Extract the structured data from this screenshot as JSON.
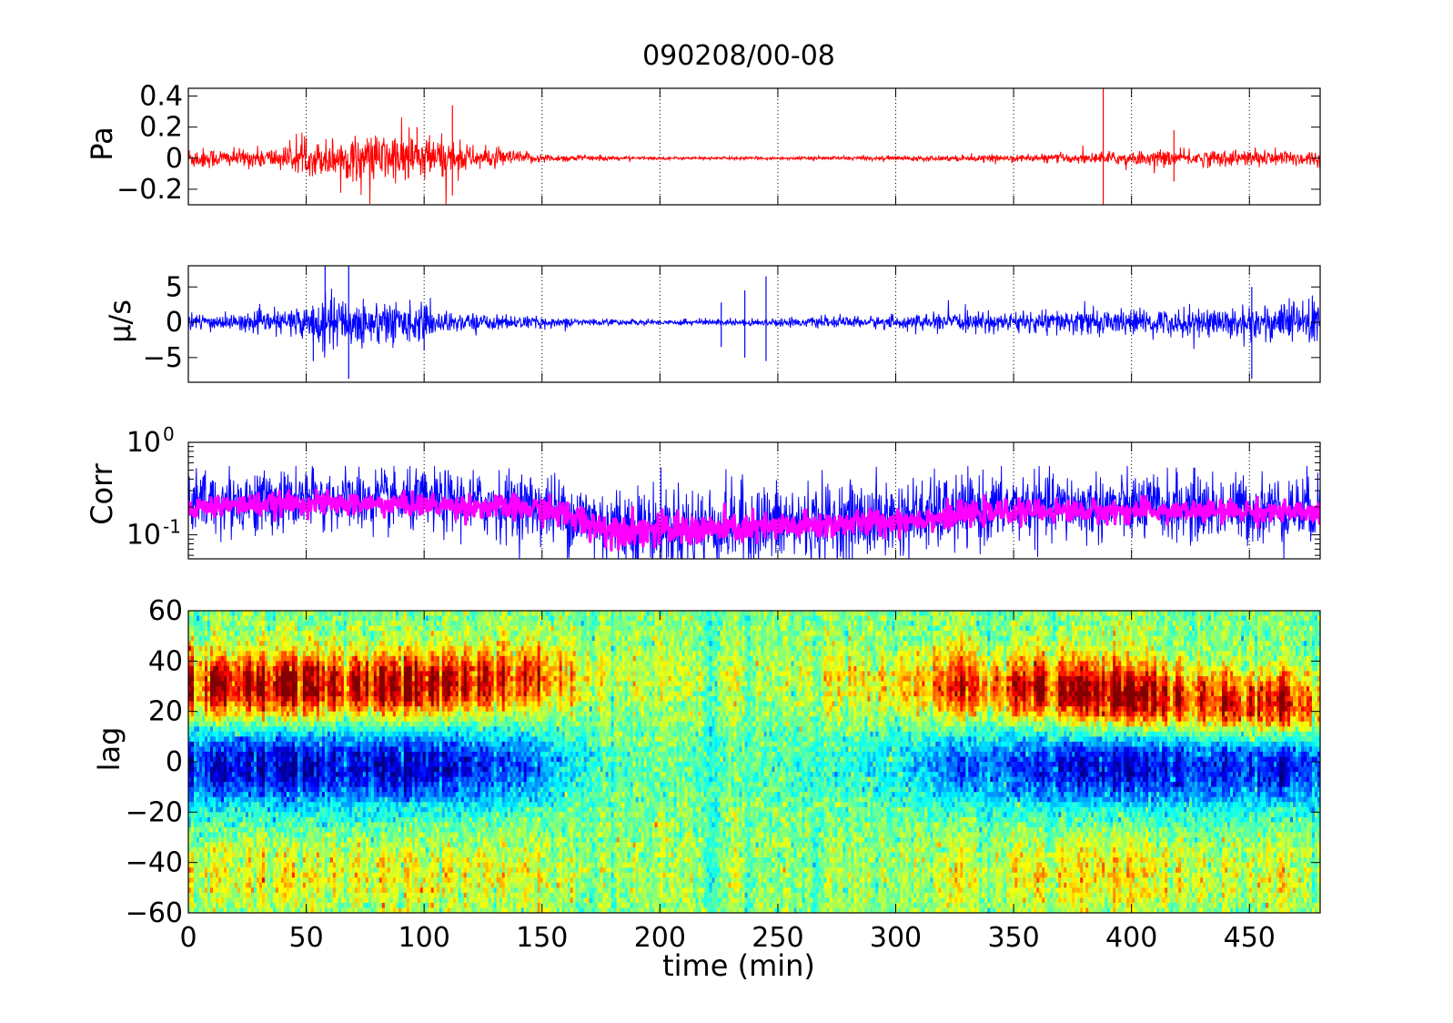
{
  "chart_data": [
    {
      "type": "line",
      "title": "090208/00-08",
      "ylabel": "Pa",
      "xlim": [
        0,
        480
      ],
      "ylim": [
        -0.3,
        0.45
      ],
      "yticks": [
        "-0.2",
        "0",
        "0.2",
        "0.4"
      ],
      "ytick_values": [
        -0.2,
        0,
        0.2,
        0.4
      ],
      "grid_x": "dotted",
      "series": [
        {
          "color": "#ff0000",
          "envelope": {
            "x": [
              0,
              20,
              40,
              50,
              60,
              75,
              90,
              100,
              110,
              120,
              135,
              150,
              175,
              200,
              250,
              300,
              350,
              380,
              400,
              430,
              460,
              480
            ],
            "amplitude": [
              0.04,
              0.03,
              0.04,
              0.05,
              0.07,
              0.08,
              0.09,
              0.08,
              0.07,
              0.04,
              0.03,
              0.015,
              0.008,
              0.005,
              0.005,
              0.008,
              0.012,
              0.018,
              0.025,
              0.028,
              0.03,
              0.028
            ]
          },
          "spikes": [
            {
              "x": 112,
              "value": 0.34
            },
            {
              "x": 112,
              "value": -0.24
            },
            {
              "x": 97,
              "value": 0.2
            },
            {
              "x": 92,
              "value": -0.14
            },
            {
              "x": 388,
              "value": 0.45
            },
            {
              "x": 388,
              "value": -0.3
            },
            {
              "x": 418,
              "value": 0.18
            },
            {
              "x": 418,
              "value": -0.15
            },
            {
              "x": 50,
              "value": 0.13
            }
          ]
        }
      ]
    },
    {
      "type": "line",
      "ylabel": "μ/s",
      "xlim": [
        0,
        480
      ],
      "ylim": [
        -8.5,
        8
      ],
      "yticks": [
        "-5",
        "0",
        "5"
      ],
      "ytick_values": [
        -5,
        0,
        5
      ],
      "grid_x": "dotted",
      "series": [
        {
          "color": "#0000ff",
          "envelope": {
            "x": [
              0,
              20,
              40,
              50,
              60,
              75,
              90,
              100,
              110,
              130,
              150,
              175,
              200,
              220,
              250,
              300,
              350,
              380,
              400,
              440,
              460,
              480
            ],
            "amplitude": [
              0.7,
              0.6,
              0.9,
              1.4,
              2.0,
              1.8,
              1.6,
              1.3,
              0.8,
              0.6,
              0.4,
              0.25,
              0.2,
              0.25,
              0.3,
              0.5,
              0.8,
              1.0,
              0.9,
              1.2,
              1.5,
              1.8
            ]
          },
          "spikes": [
            {
              "x": 58,
              "value": 8
            },
            {
              "x": 68,
              "value": 8
            },
            {
              "x": 68,
              "value": -8
            },
            {
              "x": 53,
              "value": -5.5
            },
            {
              "x": 226,
              "value": 2.8
            },
            {
              "x": 226,
              "value": -3.5
            },
            {
              "x": 236,
              "value": 4.5
            },
            {
              "x": 236,
              "value": -5
            },
            {
              "x": 245,
              "value": 6.5
            },
            {
              "x": 245,
              "value": -5.5
            },
            {
              "x": 451,
              "value": 5
            },
            {
              "x": 451,
              "value": -8
            },
            {
              "x": 100,
              "value": -4
            }
          ]
        }
      ]
    },
    {
      "type": "line",
      "ylabel": "Corr",
      "yscale": "log",
      "xlim": [
        0,
        480
      ],
      "ylim": [
        0.055,
        1
      ],
      "yticks": [
        "10",
        "10"
      ],
      "ytick_exponents": [
        "0",
        "-1"
      ],
      "ytick_values": [
        1,
        0.1
      ],
      "grid_x": "dotted",
      "series": [
        {
          "color": "#0000ff",
          "style": "thin",
          "envelope": {
            "x": [
              0,
              50,
              100,
              150,
              175,
              200,
              250,
              300,
              350,
              400,
              450,
              480
            ],
            "center": [
              0.22,
              0.24,
              0.23,
              0.2,
              0.13,
              0.12,
              0.13,
              0.15,
              0.2,
              0.2,
              0.19,
              0.19
            ],
            "spread": [
              2.0,
              1.9,
              1.9,
              2.0,
              2.3,
              2.4,
              2.3,
              2.2,
              2.0,
              2.0,
              2.0,
              2.0
            ]
          }
        },
        {
          "color": "#ff00ff",
          "style": "thick",
          "envelope": {
            "x": [
              0,
              50,
              100,
              150,
              175,
              200,
              250,
              300,
              350,
              400,
              450,
              480
            ],
            "center": [
              0.2,
              0.22,
              0.21,
              0.19,
              0.12,
              0.11,
              0.12,
              0.14,
              0.18,
              0.18,
              0.18,
              0.17
            ],
            "spread": [
              1.25,
              1.25,
              1.25,
              1.3,
              1.4,
              1.4,
              1.35,
              1.3,
              1.25,
              1.25,
              1.25,
              1.25
            ]
          }
        }
      ]
    },
    {
      "type": "heatmap",
      "ylabel": "lag",
      "xlabel": "time (min)",
      "xlim": [
        0,
        480
      ],
      "ylim": [
        -60,
        60
      ],
      "xticks": [
        "0",
        "50",
        "100",
        "150",
        "200",
        "250",
        "300",
        "350",
        "400",
        "450"
      ],
      "xtick_values": [
        0,
        50,
        100,
        150,
        200,
        250,
        300,
        350,
        400,
        450
      ],
      "yticks": [
        "-60",
        "-40",
        "-20",
        "0",
        "20",
        "40",
        "60"
      ],
      "ytick_values": [
        -60,
        -40,
        -20,
        0,
        20,
        40,
        60
      ],
      "colormap": "jet",
      "structure": {
        "x": [
          0,
          50,
          100,
          130,
          160,
          180,
          250,
          300,
          330,
          370,
          400,
          450,
          480
        ],
        "strength": [
          0.85,
          0.95,
          0.95,
          0.7,
          0.35,
          0.1,
          0.1,
          0.3,
          0.6,
          0.75,
          0.8,
          0.85,
          0.85
        ],
        "peak_lag": [
          30,
          30,
          30,
          32,
          34,
          35,
          32,
          30,
          30,
          28,
          26,
          22,
          22
        ],
        "trough_lag": [
          0,
          0,
          0,
          0,
          0,
          0,
          0,
          0,
          0,
          0,
          0,
          0,
          0
        ]
      }
    }
  ]
}
